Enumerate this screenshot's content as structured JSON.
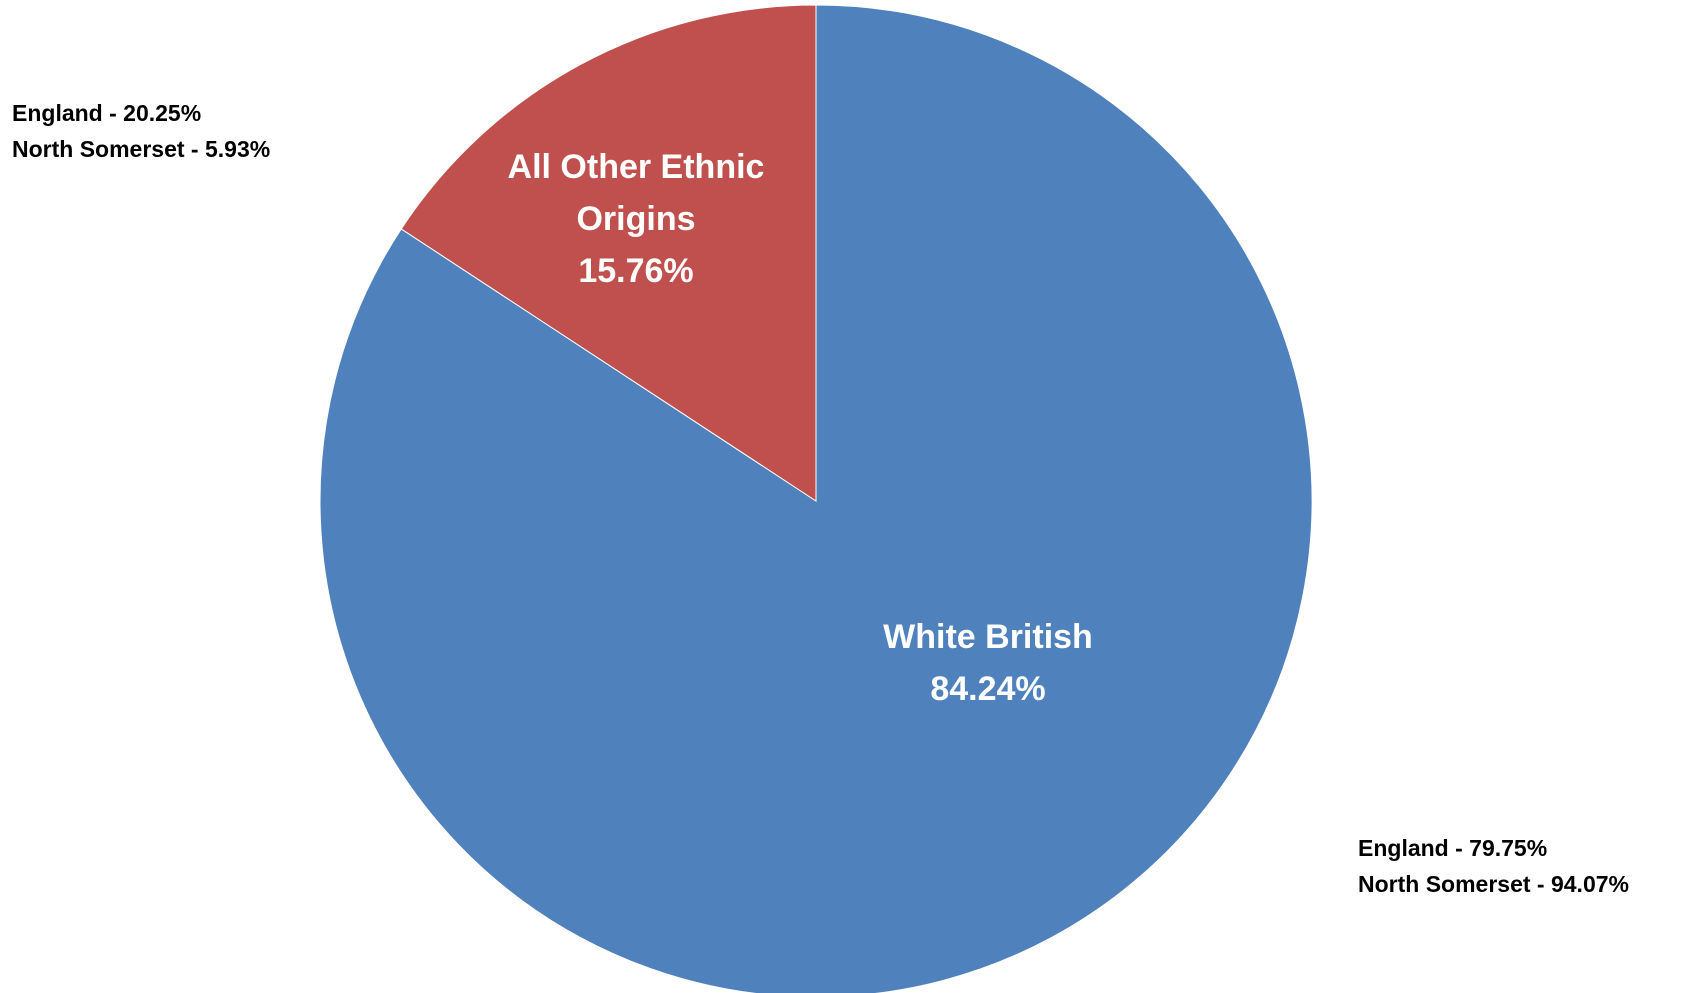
{
  "chart_data": {
    "type": "pie",
    "start_angle": "12 o'clock",
    "direction": "clockwise",
    "slices": [
      {
        "label_lines": [
          "White British"
        ],
        "value_label": "84.24%",
        "value": 84.24,
        "color": "#4F81BD"
      },
      {
        "label_lines": [
          "All Other Ethnic",
          "Origins"
        ],
        "value_label": "15.76%",
        "value": 15.76,
        "color": "#C0504D"
      }
    ],
    "annotations": {
      "other": [
        "England - 20.25%",
        "North Somerset - 5.93%"
      ],
      "white": [
        "England - 79.75%",
        "North Somerset - 94.07%"
      ]
    },
    "legend": "none"
  }
}
